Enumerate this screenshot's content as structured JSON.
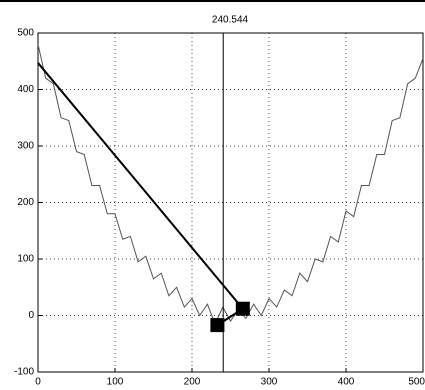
{
  "chart_data": {
    "type": "line",
    "title": "240.544",
    "x": [
      0,
      10,
      20,
      30,
      40,
      50,
      60,
      70,
      80,
      90,
      100,
      110,
      120,
      130,
      140,
      150,
      160,
      170,
      180,
      190,
      200,
      210,
      220,
      230,
      240,
      250,
      260,
      270,
      280,
      290,
      300,
      310,
      320,
      330,
      340,
      350,
      360,
      370,
      380,
      390,
      400,
      410,
      420,
      430,
      440,
      450,
      460,
      470,
      480,
      490,
      500
    ],
    "series": [
      {
        "color": "#555555",
        "values": [
          480,
          420,
          410,
          350,
          345,
          290,
          285,
          230,
          230,
          180,
          180,
          135,
          140,
          95,
          105,
          65,
          75,
          35,
          50,
          15,
          30,
          0,
          20,
          -15,
          15,
          -10,
          10,
          -5,
          20,
          0,
          30,
          15,
          45,
          35,
          75,
          60,
          100,
          95,
          140,
          130,
          185,
          175,
          230,
          230,
          285,
          285,
          345,
          350,
          410,
          420,
          455
        ]
      }
    ],
    "lines": [
      {
        "color": "#000000",
        "x": [
          0,
          266,
          233
        ],
        "y": [
          447,
          12,
          -17
        ]
      }
    ],
    "markers": {
      "color": "#000000",
      "x": [
        233,
        266
      ],
      "y": [
        -17,
        12
      ]
    },
    "vline": 240.544,
    "xlim": [
      0,
      500
    ],
    "ylim": [
      -100,
      500
    ],
    "xticks": [
      0,
      100,
      200,
      300,
      400,
      500
    ],
    "yticks": [
      -100,
      0,
      100,
      200,
      300,
      400,
      500
    ],
    "grid": true
  }
}
